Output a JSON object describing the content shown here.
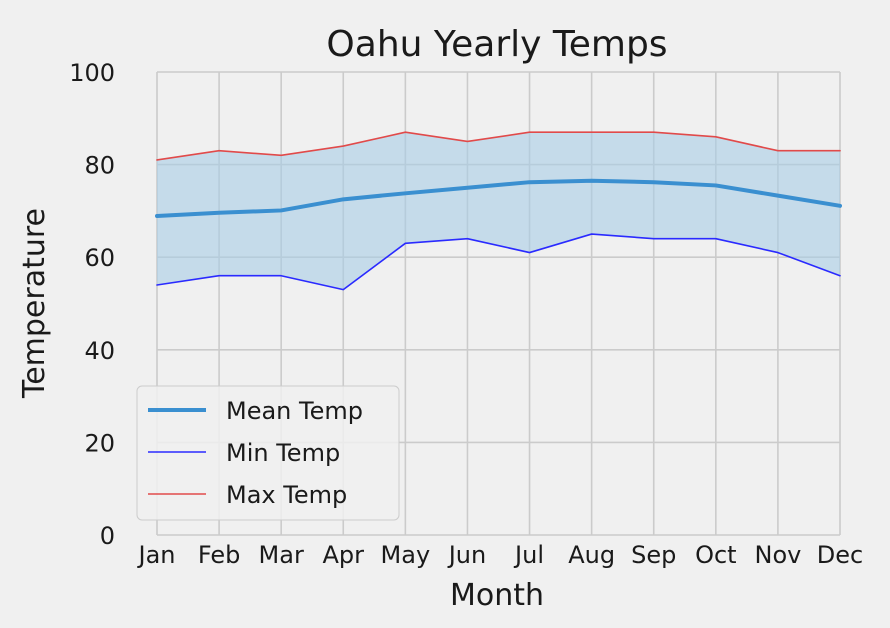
{
  "chart_data": {
    "type": "line",
    "title": "Oahu Yearly Temps",
    "xlabel": "Month",
    "ylabel": "Temperature",
    "categories": [
      "Jan",
      "Feb",
      "Mar",
      "Apr",
      "May",
      "Jun",
      "Jul",
      "Aug",
      "Sep",
      "Oct",
      "Nov",
      "Dec"
    ],
    "ylim": [
      0,
      100
    ],
    "yticks": [
      0,
      20,
      40,
      60,
      80,
      100
    ],
    "grid": true,
    "legend_position": "lower-left",
    "fill_between": {
      "lower": "Min Temp",
      "upper": "Max Temp",
      "color": "#a9cde6"
    },
    "series": [
      {
        "name": "Mean Temp",
        "color": "#3a8fd0",
        "values": [
          68.9,
          69.6,
          70.1,
          72.5,
          73.8,
          75.0,
          76.2,
          76.5,
          76.2,
          75.5,
          73.3,
          71.1
        ]
      },
      {
        "name": "Min Temp",
        "color": "#2a2aff",
        "values": [
          54,
          56,
          56,
          53,
          63,
          64,
          61,
          65,
          64,
          64,
          61,
          56
        ]
      },
      {
        "name": "Max Temp",
        "color": "#e14a4a",
        "values": [
          81,
          83,
          82,
          84,
          87,
          85,
          87,
          87,
          87,
          86,
          83,
          83
        ]
      }
    ]
  }
}
